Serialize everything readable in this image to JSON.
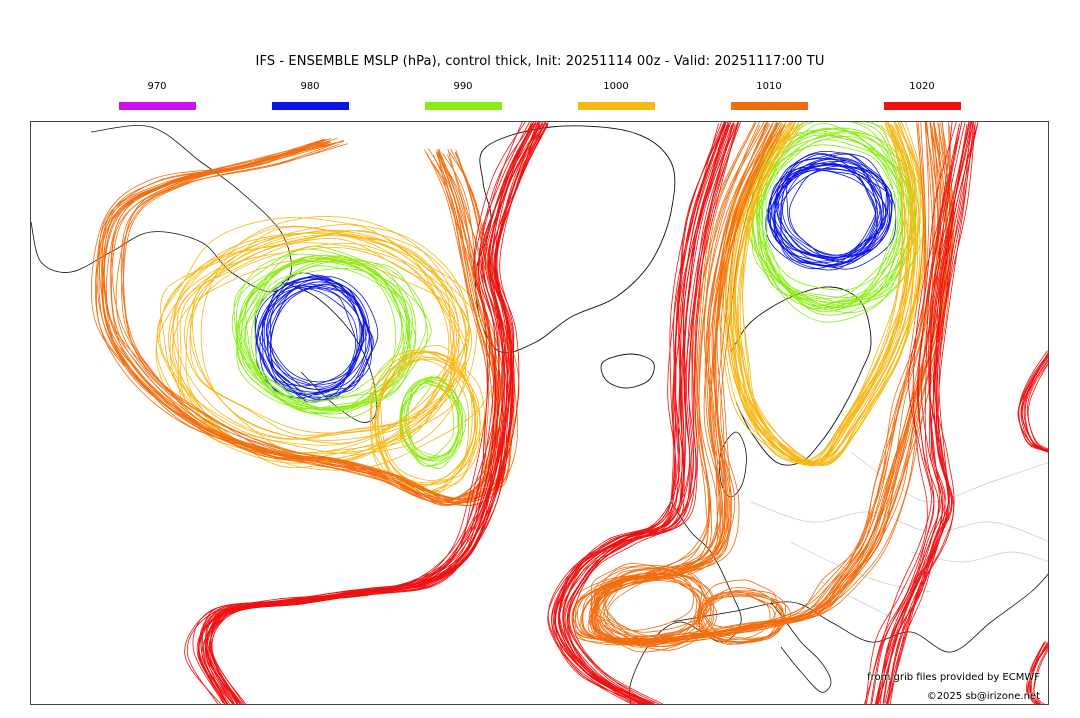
{
  "title": "IFS - ENSEMBLE MSLP (hPa), control thick, Init: 20251114 00z - Valid: 20251117:00 TU",
  "legend": [
    {
      "label": "970",
      "color": "#cc11ee"
    },
    {
      "label": "980",
      "color": "#0a14e6"
    },
    {
      "label": "990",
      "color": "#88ee11"
    },
    {
      "label": "1000",
      "color": "#f8b612"
    },
    {
      "label": "1010",
      "color": "#f26d10"
    },
    {
      "label": "1020",
      "color": "#ee1111"
    }
  ],
  "credit": {
    "line1": "from grib files provided by ECMWF",
    "line2": "©2025 sb@irizone.net"
  }
}
